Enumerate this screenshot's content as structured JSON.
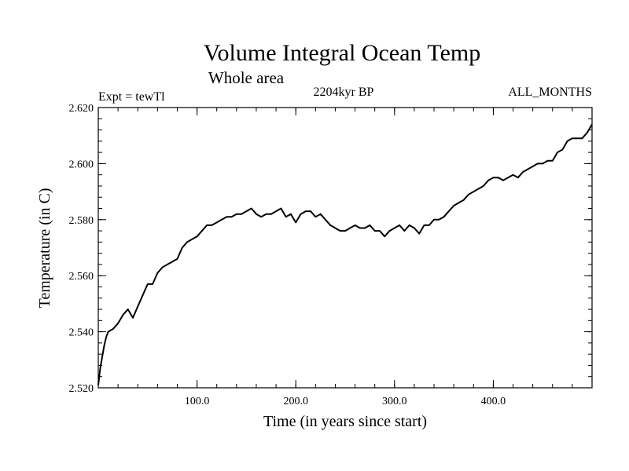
{
  "chart_data": {
    "type": "line",
    "title": "Volume Integral Ocean Temp",
    "subtitle": "Whole area",
    "experiment": "Expt = tewTl",
    "period": "2204kyr BP",
    "months": "ALL_MONTHS",
    "xlabel": "Time (in years since start)",
    "ylabel": "Temperature (in C)",
    "xlim": [
      0,
      500
    ],
    "ylim": [
      2.52,
      2.62
    ],
    "xticks": [
      100,
      200,
      300,
      400
    ],
    "xtick_labels": [
      "100.0",
      "200.0",
      "300.0",
      "400.0"
    ],
    "yticks": [
      2.52,
      2.54,
      2.56,
      2.58,
      2.6,
      2.62
    ],
    "ytick_labels": [
      "2.520",
      "2.540",
      "2.560",
      "2.580",
      "2.600",
      "2.620"
    ],
    "series": [
      {
        "name": "Volume integral ocean temperature",
        "x": [
          0,
          2,
          4,
          6,
          8,
          10,
          15,
          20,
          25,
          30,
          35,
          40,
          45,
          50,
          55,
          60,
          65,
          70,
          75,
          80,
          85,
          90,
          95,
          100,
          105,
          110,
          115,
          120,
          125,
          130,
          135,
          140,
          145,
          150,
          155,
          160,
          165,
          170,
          175,
          180,
          185,
          190,
          195,
          200,
          205,
          210,
          215,
          220,
          225,
          230,
          235,
          240,
          245,
          250,
          255,
          260,
          265,
          270,
          275,
          280,
          285,
          290,
          295,
          300,
          305,
          310,
          315,
          320,
          325,
          330,
          335,
          340,
          345,
          350,
          355,
          360,
          365,
          370,
          375,
          380,
          385,
          390,
          395,
          400,
          405,
          410,
          415,
          420,
          425,
          430,
          435,
          440,
          445,
          450,
          455,
          460,
          465,
          470,
          475,
          480,
          485,
          490,
          495,
          500
        ],
        "values": [
          2.521,
          2.527,
          2.531,
          2.535,
          2.538,
          2.54,
          2.541,
          2.543,
          2.546,
          2.548,
          2.545,
          2.549,
          2.553,
          2.557,
          2.557,
          2.561,
          2.563,
          2.564,
          2.565,
          2.566,
          2.57,
          2.572,
          2.573,
          2.574,
          2.576,
          2.578,
          2.578,
          2.579,
          2.58,
          2.581,
          2.581,
          2.582,
          2.582,
          2.583,
          2.584,
          2.582,
          2.581,
          2.582,
          2.582,
          2.583,
          2.584,
          2.581,
          2.582,
          2.579,
          2.582,
          2.583,
          2.583,
          2.581,
          2.582,
          2.58,
          2.578,
          2.577,
          2.576,
          2.576,
          2.577,
          2.578,
          2.577,
          2.577,
          2.578,
          2.576,
          2.576,
          2.574,
          2.576,
          2.577,
          2.578,
          2.576,
          2.578,
          2.577,
          2.575,
          2.578,
          2.578,
          2.58,
          2.58,
          2.581,
          2.583,
          2.585,
          2.586,
          2.587,
          2.589,
          2.59,
          2.591,
          2.592,
          2.594,
          2.595,
          2.595,
          2.594,
          2.595,
          2.596,
          2.595,
          2.597,
          2.598,
          2.599,
          2.6,
          2.6,
          2.601,
          2.601,
          2.604,
          2.605,
          2.608,
          2.609,
          2.609,
          2.609,
          2.611,
          2.614
        ]
      }
    ],
    "line_color": "#000000"
  }
}
